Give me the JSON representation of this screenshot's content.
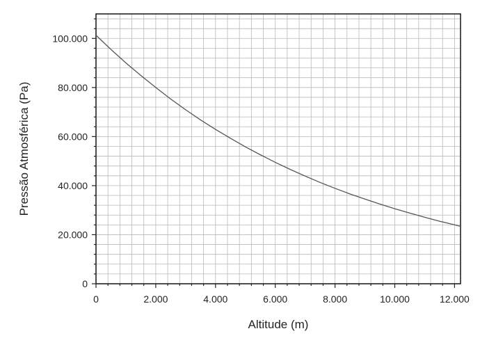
{
  "chart_data": {
    "type": "line",
    "title": "",
    "xlabel": "Altitude (m)",
    "ylabel": "Pressão Atmosférica (Pa)",
    "xlim": [
      0,
      12200
    ],
    "ylim": [
      0,
      110000
    ],
    "x_ticks": [
      0,
      2000,
      4000,
      6000,
      8000,
      10000,
      12000
    ],
    "x_tick_labels": [
      "0",
      "2.000",
      "4.000",
      "6.000",
      "8.000",
      "10.000",
      "12.000"
    ],
    "y_ticks": [
      0,
      20000,
      40000,
      60000,
      80000,
      100000
    ],
    "y_tick_labels": [
      "0",
      "20.000",
      "40.000",
      "60.000",
      "80.000",
      "100.000"
    ],
    "grid": true,
    "grid_step_x": 400,
    "grid_step_y": 4000,
    "legend": "none",
    "series": [
      {
        "x": [
          0,
          500,
          1000,
          1500,
          2000,
          2500,
          3000,
          3500,
          4000,
          4500,
          5000,
          5500,
          6000,
          6500,
          7000,
          7500,
          8000,
          8500,
          9000,
          9500,
          10000,
          10500,
          11000,
          11500,
          12000,
          12200
        ],
        "values": [
          101325,
          95500,
          90000,
          84900,
          80000,
          75300,
          70900,
          66800,
          62900,
          59300,
          55800,
          52600,
          49500,
          46600,
          43900,
          41300,
          38900,
          36600,
          34500,
          32500,
          30600,
          28800,
          27100,
          25500,
          24000,
          23400
        ]
      }
    ]
  }
}
